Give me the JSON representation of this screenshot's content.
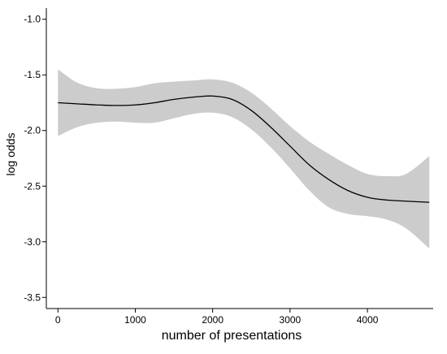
{
  "chart_data": {
    "type": "line",
    "title": "",
    "xlabel": "number of presentations",
    "ylabel": "log odds",
    "xlim": [
      -150,
      4850
    ],
    "ylim": [
      -3.6,
      -0.9
    ],
    "x_ticks": [
      0,
      1000,
      2000,
      3000,
      4000
    ],
    "x_tick_labels": [
      "0",
      "1000",
      "2000",
      "3000",
      "4000"
    ],
    "y_ticks": [
      -1.0,
      -1.5,
      -2.0,
      -2.5,
      -3.0,
      -3.5
    ],
    "y_tick_labels": [
      "-1.0",
      "-1.5",
      "-2.0",
      "-2.5",
      "-3.0",
      "-3.5"
    ],
    "grid": false,
    "legend": "none",
    "colors": {
      "line": "#000000",
      "band": "#cccccc"
    },
    "series": [
      {
        "x": [
          0,
          250,
          500,
          750,
          1000,
          1250,
          1500,
          1750,
          2000,
          2250,
          2500,
          2750,
          3000,
          3250,
          3500,
          3750,
          4000,
          4250,
          4500,
          4800
        ],
        "y": [
          -1.75,
          -1.76,
          -1.77,
          -1.775,
          -1.77,
          -1.75,
          -1.72,
          -1.7,
          -1.69,
          -1.72,
          -1.82,
          -1.97,
          -2.14,
          -2.31,
          -2.44,
          -2.54,
          -2.6,
          -2.625,
          -2.635,
          -2.645
        ],
        "lower": [
          -2.05,
          -1.97,
          -1.93,
          -1.92,
          -1.93,
          -1.93,
          -1.89,
          -1.85,
          -1.84,
          -1.88,
          -1.99,
          -2.15,
          -2.34,
          -2.54,
          -2.69,
          -2.75,
          -2.77,
          -2.8,
          -2.88,
          -3.06
        ],
        "upper": [
          -1.45,
          -1.57,
          -1.62,
          -1.625,
          -1.61,
          -1.575,
          -1.56,
          -1.55,
          -1.54,
          -1.57,
          -1.66,
          -1.8,
          -1.96,
          -2.1,
          -2.21,
          -2.31,
          -2.39,
          -2.41,
          -2.39,
          -2.23
        ]
      }
    ]
  }
}
